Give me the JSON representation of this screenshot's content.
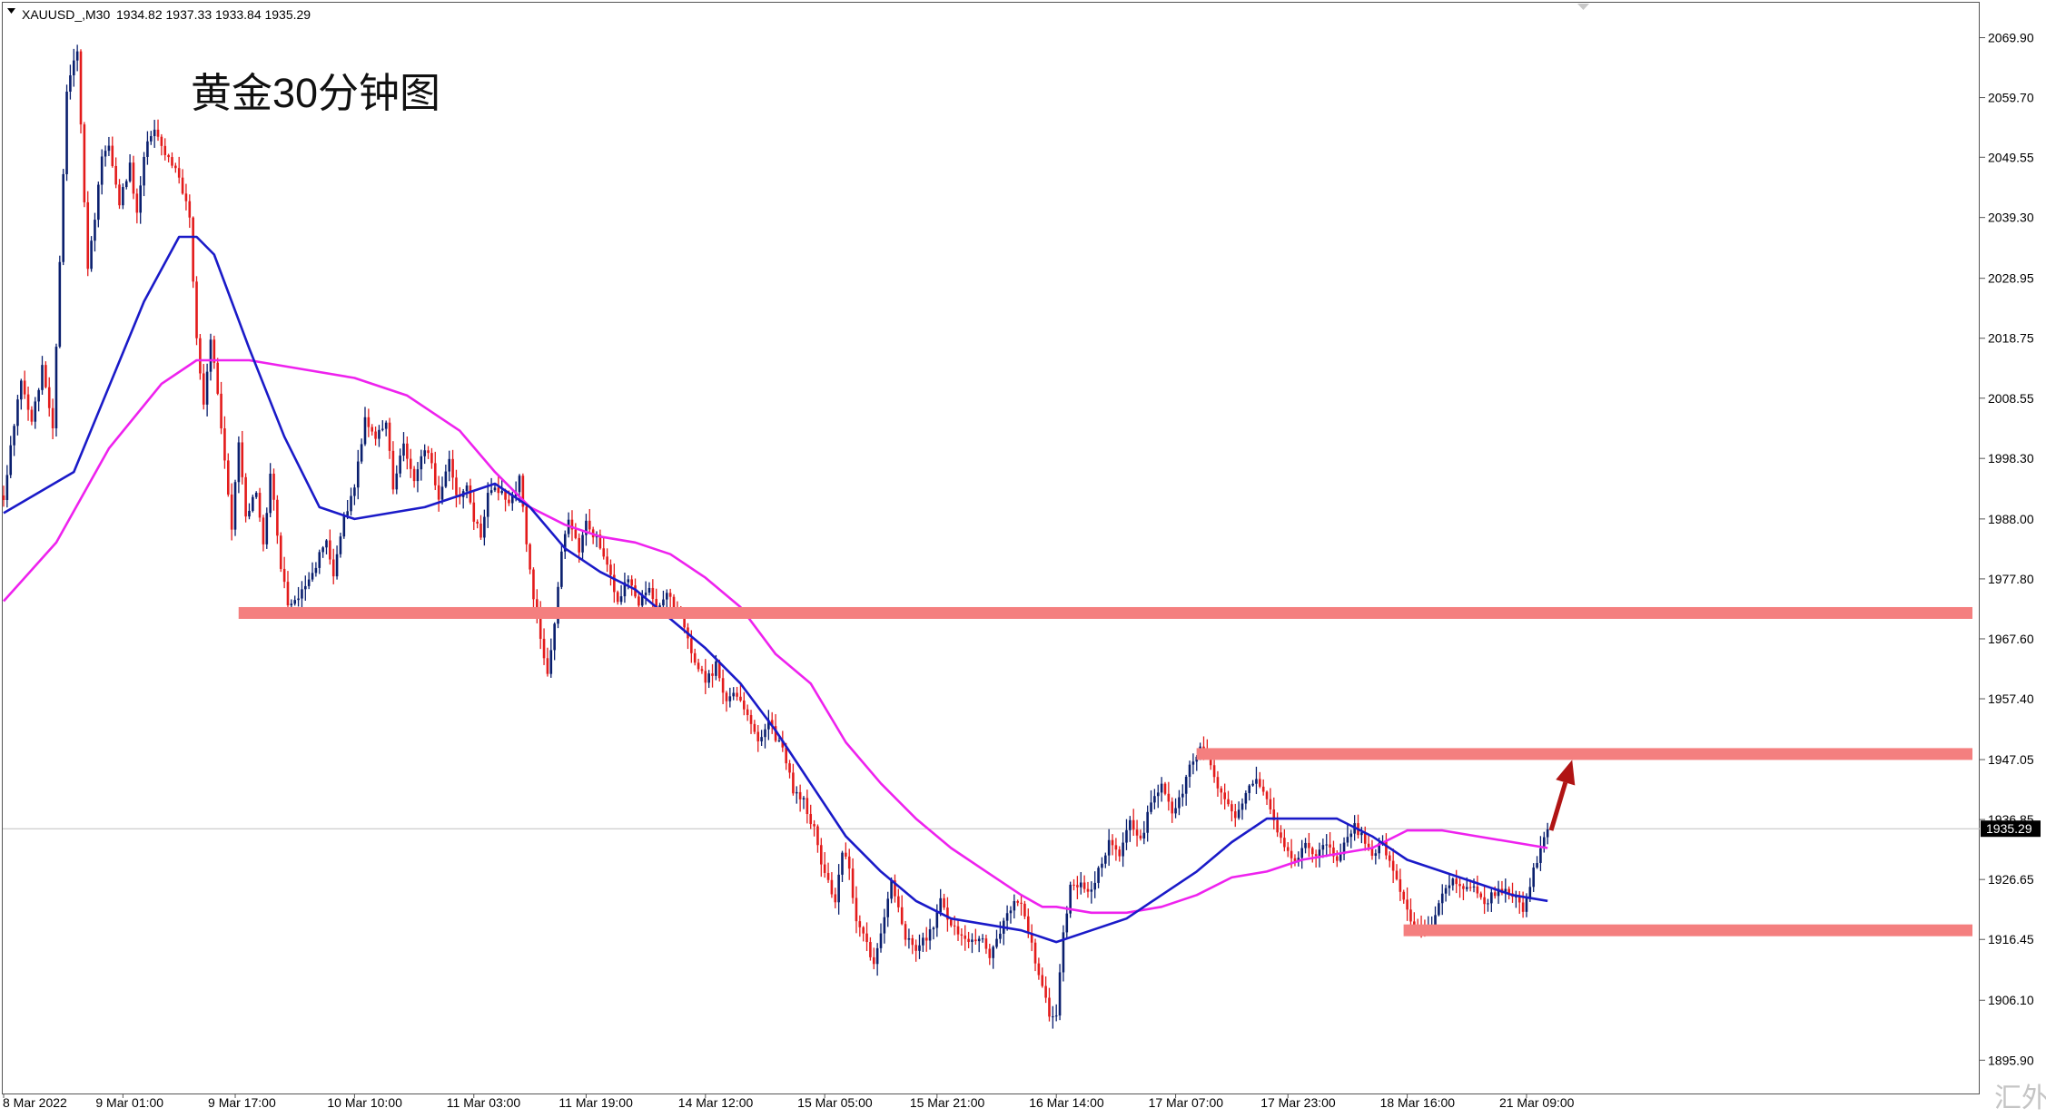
{
  "header": {
    "symbol": "XAUUSD_,M30",
    "ohlc": "1934.82 1937.33 1933.84 1935.29"
  },
  "annotation_title": "黄金30分钟图",
  "watermark": "汇外网",
  "colors": {
    "bull": "#0a1f6e",
    "bear": "#e31b1b",
    "ma_fast": "#1a1ac8",
    "ma_slow": "#ee22ee",
    "level": "#f47f7f",
    "arrow": "#b01414",
    "price_tag_bg": "#000000",
    "price_tag_text": "#ffffff",
    "current_price_line": "#c0c0c0"
  },
  "chart_data": {
    "type": "candlestick",
    "title": "黄金30分钟图",
    "symbol": "XAUUSD_,M30",
    "current_price": 1935.29,
    "ylim": [
      1890.0,
      2076.0
    ],
    "y_ticks": [
      "2069.90",
      "2059.70",
      "2049.55",
      "2039.30",
      "2028.95",
      "2018.75",
      "2008.55",
      "1998.30",
      "1988.00",
      "1977.80",
      "1967.60",
      "1957.40",
      "1947.05",
      "1936.85",
      "1926.65",
      "1916.45",
      "1906.10",
      "1895.90"
    ],
    "x_ticks": [
      "8 Mar 2022",
      "9 Mar 01:00",
      "9 Mar 17:00",
      "10 Mar 10:00",
      "11 Mar 03:00",
      "11 Mar 19:00",
      "14 Mar 12:00",
      "15 Mar 05:00",
      "15 Mar 21:00",
      "16 Mar 14:00",
      "17 Mar 07:00",
      "17 Mar 23:00",
      "18 Mar 16:00",
      "21 Mar 09:00"
    ],
    "x_tick_bar_index": [
      0,
      34,
      66,
      100,
      134,
      166,
      200,
      234,
      266,
      300,
      334,
      366,
      400,
      434
    ],
    "n_bars": 454,
    "price_path": [
      [
        0,
        1992
      ],
      [
        5,
        2012
      ],
      [
        8,
        2004
      ],
      [
        11,
        2014
      ],
      [
        14,
        2003
      ],
      [
        18,
        2061
      ],
      [
        21,
        2068
      ],
      [
        24,
        2030
      ],
      [
        28,
        2049
      ],
      [
        30,
        2052
      ],
      [
        33,
        2042
      ],
      [
        36,
        2048
      ],
      [
        38,
        2040
      ],
      [
        40,
        2050
      ],
      [
        43,
        2055
      ],
      [
        46,
        2050
      ],
      [
        49,
        2048
      ],
      [
        51,
        2043
      ],
      [
        53,
        2040
      ],
      [
        55,
        2018
      ],
      [
        57,
        2008
      ],
      [
        59,
        2018
      ],
      [
        61,
        2010
      ],
      [
        63,
        1998
      ],
      [
        65,
        1986
      ],
      [
        67,
        2001
      ],
      [
        69,
        1988
      ],
      [
        72,
        1993
      ],
      [
        74,
        1983
      ],
      [
        76,
        1996
      ],
      [
        79,
        1980
      ],
      [
        81,
        1974
      ],
      [
        84,
        1975
      ],
      [
        87,
        1977
      ],
      [
        89,
        1980
      ],
      [
        92,
        1985
      ],
      [
        94,
        1978
      ],
      [
        97,
        1988
      ],
      [
        100,
        1993
      ],
      [
        103,
        2005
      ],
      [
        106,
        2002
      ],
      [
        109,
        2005
      ],
      [
        111,
        1993
      ],
      [
        114,
        2001
      ],
      [
        117,
        1994
      ],
      [
        120,
        2000
      ],
      [
        122,
        1997
      ],
      [
        124,
        1992
      ],
      [
        127,
        1998
      ],
      [
        129,
        1992
      ],
      [
        132,
        1993
      ],
      [
        134,
        1988
      ],
      [
        136,
        1985
      ],
      [
        138,
        1992
      ],
      [
        141,
        1993
      ],
      [
        144,
        1990
      ],
      [
        147,
        1995
      ],
      [
        149,
        1984
      ],
      [
        151,
        1975
      ],
      [
        153,
        1968
      ],
      [
        155,
        1962
      ],
      [
        157,
        1970
      ],
      [
        159,
        1982
      ],
      [
        161,
        1988
      ],
      [
        164,
        1983
      ],
      [
        166,
        1987
      ],
      [
        169,
        1985
      ],
      [
        172,
        1980
      ],
      [
        175,
        1974
      ],
      [
        178,
        1978
      ],
      [
        181,
        1974
      ],
      [
        184,
        1976
      ],
      [
        186,
        1972
      ],
      [
        189,
        1976
      ],
      [
        191,
        1973
      ],
      [
        193,
        1972
      ],
      [
        195,
        1967
      ],
      [
        198,
        1963
      ],
      [
        200,
        1960
      ],
      [
        203,
        1963
      ],
      [
        206,
        1957
      ],
      [
        209,
        1958
      ],
      [
        212,
        1955
      ],
      [
        215,
        1950
      ],
      [
        218,
        1953
      ],
      [
        221,
        1950
      ],
      [
        223,
        1947
      ],
      [
        225,
        1942
      ],
      [
        228,
        1940
      ],
      [
        231,
        1935
      ],
      [
        233,
        1930
      ],
      [
        235,
        1926
      ],
      [
        237,
        1923
      ],
      [
        239,
        1932
      ],
      [
        241,
        1928
      ],
      [
        243,
        1920
      ],
      [
        245,
        1917
      ],
      [
        248,
        1912
      ],
      [
        251,
        1921
      ],
      [
        253,
        1926
      ],
      [
        255,
        1922
      ],
      [
        257,
        1917
      ],
      [
        260,
        1915
      ],
      [
        263,
        1917
      ],
      [
        265,
        1919
      ],
      [
        267,
        1923
      ],
      [
        269,
        1920
      ],
      [
        272,
        1917
      ],
      [
        275,
        1916
      ],
      [
        278,
        1917
      ],
      [
        281,
        1914
      ],
      [
        284,
        1918
      ],
      [
        287,
        1922
      ],
      [
        290,
        1923
      ],
      [
        292,
        1918
      ],
      [
        294,
        1913
      ],
      [
        296,
        1908
      ],
      [
        298,
        1904
      ],
      [
        300,
        1903
      ],
      [
        302,
        1918
      ],
      [
        304,
        1925
      ],
      [
        306,
        1926
      ],
      [
        309,
        1925
      ],
      [
        311,
        1926
      ],
      [
        313,
        1930
      ],
      [
        315,
        1933
      ],
      [
        318,
        1931
      ],
      [
        321,
        1936
      ],
      [
        324,
        1933
      ],
      [
        327,
        1940
      ],
      [
        330,
        1943
      ],
      [
        333,
        1938
      ],
      [
        336,
        1942
      ],
      [
        338,
        1946
      ],
      [
        341,
        1949
      ],
      [
        343,
        1948
      ],
      [
        345,
        1944
      ],
      [
        348,
        1940
      ],
      [
        351,
        1937
      ],
      [
        354,
        1941
      ],
      [
        357,
        1944
      ],
      [
        360,
        1940
      ],
      [
        362,
        1937
      ],
      [
        365,
        1932
      ],
      [
        368,
        1930
      ],
      [
        371,
        1933
      ],
      [
        374,
        1931
      ],
      [
        377,
        1933
      ],
      [
        380,
        1930
      ],
      [
        383,
        1934
      ],
      [
        385,
        1936
      ],
      [
        388,
        1933
      ],
      [
        390,
        1931
      ],
      [
        393,
        1933
      ],
      [
        396,
        1928
      ],
      [
        398,
        1925
      ],
      [
        400,
        1921
      ],
      [
        402,
        1919
      ],
      [
        404,
        1918
      ],
      [
        407,
        1919
      ],
      [
        410,
        1925
      ],
      [
        413,
        1927
      ],
      [
        416,
        1925
      ],
      [
        419,
        1926
      ],
      [
        422,
        1923
      ],
      [
        425,
        1924
      ],
      [
        428,
        1925
      ],
      [
        431,
        1923
      ],
      [
        433,
        1921
      ],
      [
        435,
        1926
      ],
      [
        437,
        1930
      ],
      [
        440,
        1935
      ]
    ],
    "ma_fast": [
      [
        0,
        1989
      ],
      [
        20,
        1996
      ],
      [
        40,
        2025
      ],
      [
        50,
        2036
      ],
      [
        55,
        2036
      ],
      [
        60,
        2033
      ],
      [
        70,
        2017
      ],
      [
        80,
        2002
      ],
      [
        90,
        1990
      ],
      [
        100,
        1988
      ],
      [
        110,
        1989
      ],
      [
        120,
        1990
      ],
      [
        130,
        1992
      ],
      [
        140,
        1994
      ],
      [
        150,
        1990
      ],
      [
        160,
        1983
      ],
      [
        170,
        1979
      ],
      [
        180,
        1976
      ],
      [
        190,
        1971
      ],
      [
        200,
        1966
      ],
      [
        210,
        1960
      ],
      [
        220,
        1952
      ],
      [
        230,
        1943
      ],
      [
        240,
        1934
      ],
      [
        250,
        1928
      ],
      [
        260,
        1923
      ],
      [
        270,
        1920
      ],
      [
        280,
        1919
      ],
      [
        290,
        1918
      ],
      [
        300,
        1916
      ],
      [
        310,
        1918
      ],
      [
        320,
        1920
      ],
      [
        330,
        1924
      ],
      [
        340,
        1928
      ],
      [
        350,
        1933
      ],
      [
        360,
        1937
      ],
      [
        370,
        1937
      ],
      [
        380,
        1937
      ],
      [
        390,
        1934
      ],
      [
        400,
        1930
      ],
      [
        410,
        1928
      ],
      [
        420,
        1926
      ],
      [
        430,
        1924
      ],
      [
        440,
        1923
      ]
    ],
    "ma_slow": [
      [
        0,
        1974
      ],
      [
        15,
        1984
      ],
      [
        30,
        2000
      ],
      [
        45,
        2011
      ],
      [
        55,
        2015
      ],
      [
        60,
        2015
      ],
      [
        70,
        2015
      ],
      [
        80,
        2014
      ],
      [
        100,
        2012
      ],
      [
        115,
        2009
      ],
      [
        130,
        2003
      ],
      [
        140,
        1996
      ],
      [
        150,
        1990
      ],
      [
        160,
        1987
      ],
      [
        170,
        1985
      ],
      [
        180,
        1984
      ],
      [
        190,
        1982
      ],
      [
        200,
        1978
      ],
      [
        210,
        1973
      ],
      [
        220,
        1965
      ],
      [
        230,
        1960
      ],
      [
        240,
        1950
      ],
      [
        250,
        1943
      ],
      [
        260,
        1937
      ],
      [
        270,
        1932
      ],
      [
        280,
        1928
      ],
      [
        290,
        1924
      ],
      [
        296,
        1922
      ],
      [
        300,
        1922
      ],
      [
        310,
        1921
      ],
      [
        320,
        1921
      ],
      [
        330,
        1922
      ],
      [
        340,
        1924
      ],
      [
        350,
        1927
      ],
      [
        360,
        1928
      ],
      [
        370,
        1930
      ],
      [
        380,
        1931
      ],
      [
        390,
        1932
      ],
      [
        400,
        1935
      ],
      [
        410,
        1935
      ],
      [
        420,
        1934
      ],
      [
        430,
        1933
      ],
      [
        440,
        1932
      ]
    ],
    "horizontal_levels": [
      {
        "price": 1972.0,
        "from_bar": 68,
        "to": "end"
      },
      {
        "price": 1948.0,
        "from_bar": 341,
        "to": "end"
      },
      {
        "price": 1918.0,
        "from_bar": 400,
        "to": "end"
      }
    ],
    "arrow": {
      "from_bar": 441,
      "from_price": 1935.0,
      "to_bar": 447,
      "to_price": 1947.0
    }
  }
}
